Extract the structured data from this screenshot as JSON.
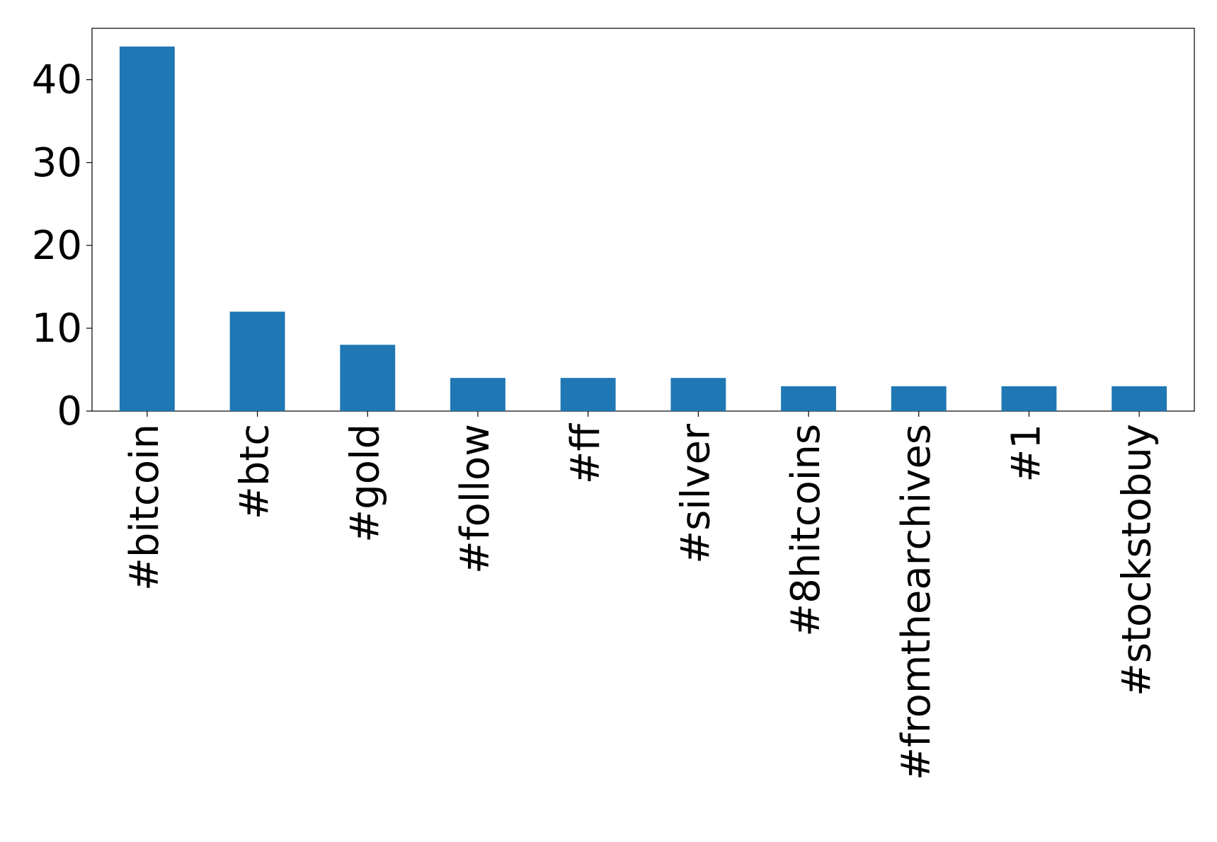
{
  "chart_data": {
    "type": "bar",
    "categories": [
      "#bitcoin",
      "#btc",
      "#gold",
      "#follow",
      "#ff",
      "#silver",
      "#8hitcoins",
      "#fromthearchives",
      "#1",
      "#stockstobuy"
    ],
    "values": [
      44,
      12,
      8,
      4,
      4,
      4,
      3,
      3,
      3,
      3
    ],
    "color": "#1f77b4",
    "ylim": [
      0,
      46.2
    ],
    "yticks": [
      0,
      10,
      20,
      30,
      40
    ],
    "grid": false
  }
}
